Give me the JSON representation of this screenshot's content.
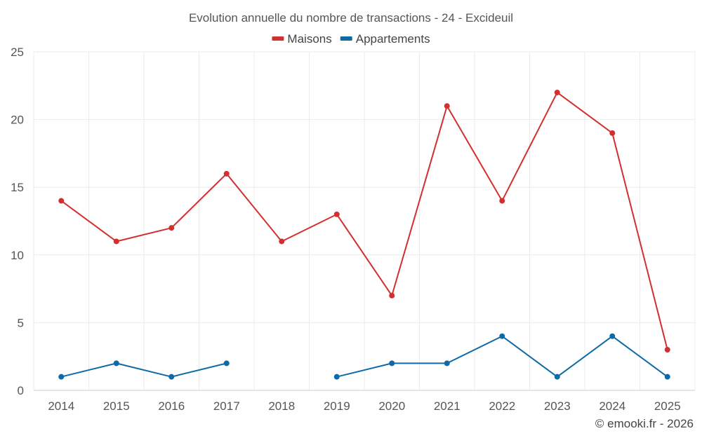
{
  "chart_data": {
    "type": "line",
    "title": "Evolution annuelle du nombre de transactions - 24 - Excideuil",
    "xlabel": "",
    "ylabel": "",
    "x": [
      "2014",
      "2015",
      "2016",
      "2017",
      "2018",
      "2019",
      "2020",
      "2021",
      "2022",
      "2023",
      "2024",
      "2025"
    ],
    "ylim": [
      0,
      25
    ],
    "yticks": [
      0,
      5,
      10,
      15,
      20,
      25
    ],
    "grid": true,
    "legend_position": "top-center",
    "series": [
      {
        "name": "Maisons",
        "color": "#d32f2f",
        "values": [
          14,
          11,
          12,
          16,
          11,
          13,
          7,
          21,
          14,
          22,
          19,
          3
        ]
      },
      {
        "name": "Appartements",
        "color": "#0e6aa6",
        "values": [
          1,
          2,
          1,
          2,
          null,
          1,
          2,
          2,
          4,
          1,
          4,
          1
        ]
      }
    ]
  },
  "credit": "© emooki.fr - 2026"
}
